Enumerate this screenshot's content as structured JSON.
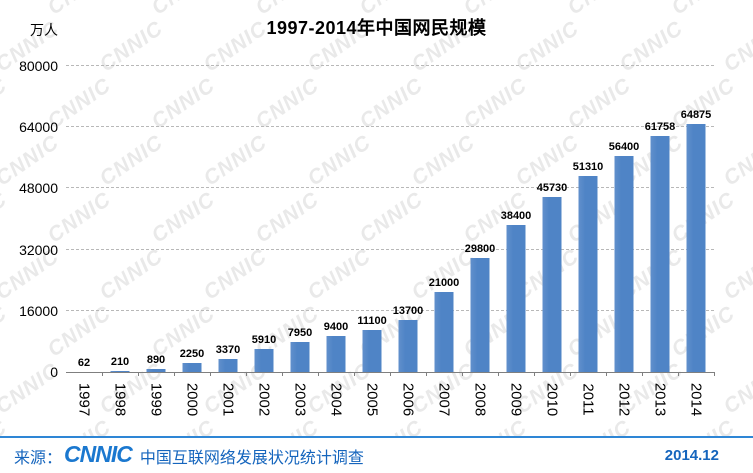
{
  "chart_data": {
    "type": "bar",
    "title": "1997-2014年中国网民规模",
    "xlabel": "",
    "ylabel": "万人",
    "categories": [
      "1997",
      "1998",
      "1999",
      "2000",
      "2001",
      "2002",
      "2003",
      "2004",
      "2005",
      "2006",
      "2007",
      "2008",
      "2009",
      "2010",
      "2011",
      "2012",
      "2013",
      "2014"
    ],
    "values": [
      62,
      210,
      890,
      2250,
      3370,
      5910,
      7950,
      9400,
      11100,
      13700,
      21000,
      29800,
      38400,
      45730,
      51310,
      56400,
      61758,
      64875
    ],
    "ylim": [
      0,
      80000
    ],
    "yticks": [
      0,
      16000,
      32000,
      48000,
      64000,
      80000
    ],
    "bar_color": "#4f84c6",
    "grid": "horizontal-dashed",
    "legend": "none",
    "value_labels": true,
    "x_tick_rotation_deg": 90
  },
  "watermark": {
    "text": "CNNIC"
  },
  "footer": {
    "source_prefix": "来源：",
    "logo_text": "CNNIC",
    "source_text": "中国互联网络发展状况统计调查",
    "date": "2014.12"
  }
}
